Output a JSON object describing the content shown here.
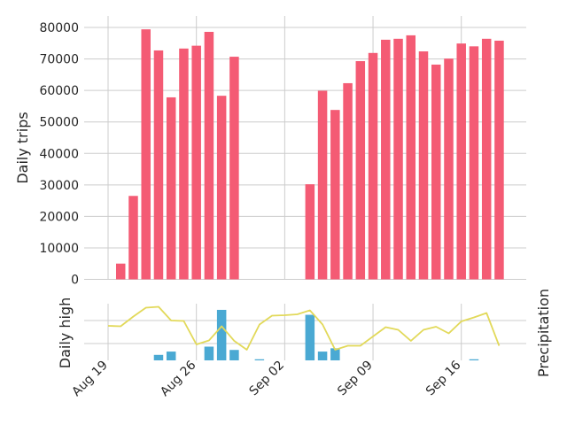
{
  "chart_data": [
    {
      "type": "bar",
      "panel": "top",
      "ylabel": "Daily trips",
      "ylim": [
        0,
        84000
      ],
      "yticks": [
        0,
        10000,
        20000,
        30000,
        40000,
        50000,
        60000,
        70000,
        80000
      ],
      "grid": true,
      "series": [
        {
          "color": "#f45b74",
          "points": [
            [
              "2016-08-20",
              5000
            ],
            [
              "2016-08-21",
              26500
            ],
            [
              "2016-08-22",
              79400
            ],
            [
              "2016-08-23",
              72700
            ],
            [
              "2016-08-24",
              57800
            ],
            [
              "2016-08-25",
              73300
            ],
            [
              "2016-08-26",
              74200
            ],
            [
              "2016-08-27",
              78600
            ],
            [
              "2016-08-28",
              58300
            ],
            [
              "2016-08-29",
              70700
            ],
            [
              "2016-09-04",
              30200
            ],
            [
              "2016-09-05",
              59900
            ],
            [
              "2016-09-06",
              53800
            ],
            [
              "2016-09-07",
              62300
            ],
            [
              "2016-09-08",
              69300
            ],
            [
              "2016-09-09",
              71900
            ],
            [
              "2016-09-10",
              76100
            ],
            [
              "2016-09-11",
              76400
            ],
            [
              "2016-09-12",
              77500
            ],
            [
              "2016-09-13",
              72400
            ],
            [
              "2016-09-14",
              68200
            ],
            [
              "2016-09-15",
              70100
            ],
            [
              "2016-09-16",
              74900
            ],
            [
              "2016-09-17",
              74000
            ],
            [
              "2016-09-18",
              76400
            ],
            [
              "2016-09-19",
              75800
            ]
          ]
        }
      ]
    },
    {
      "type": "line",
      "panel": "bottom",
      "ylabel_left": "Daily high",
      "ylabel_right": "Precipitation",
      "left_color": "#e2d95a",
      "right_color": "#4aa9d3",
      "grid": true,
      "x_tick_labels": [
        {
          "date": "2016-08-19",
          "label": "Aug 19"
        },
        {
          "date": "2016-08-26",
          "label": "Aug 26"
        },
        {
          "date": "2016-09-02",
          "label": "Sep 02"
        },
        {
          "date": "2016-09-09",
          "label": "Sep 09"
        },
        {
          "date": "2016-09-16",
          "label": "Sep 16"
        }
      ],
      "temperature": [
        [
          "2016-08-19",
          0.54
        ],
        [
          "2016-08-20",
          0.53
        ],
        [
          "2016-08-21",
          0.75
        ],
        [
          "2016-08-22",
          0.95
        ],
        [
          "2016-08-23",
          0.97
        ],
        [
          "2016-08-24",
          0.66
        ],
        [
          "2016-08-25",
          0.65
        ],
        [
          "2016-08-26",
          0.12
        ],
        [
          "2016-08-27",
          0.21
        ],
        [
          "2016-08-28",
          0.53
        ],
        [
          "2016-08-29",
          0.2
        ],
        [
          "2016-08-30",
          0.0
        ],
        [
          "2016-08-31",
          0.57
        ],
        [
          "2016-09-01",
          0.77
        ],
        [
          "2016-09-02",
          0.78
        ],
        [
          "2016-09-03",
          0.8
        ],
        [
          "2016-09-04",
          0.89
        ],
        [
          "2016-09-05",
          0.57
        ],
        [
          "2016-09-06",
          0.0
        ],
        [
          "2016-09-07",
          0.09
        ],
        [
          "2016-09-08",
          0.09
        ],
        [
          "2016-09-09",
          0.3
        ],
        [
          "2016-09-10",
          0.51
        ],
        [
          "2016-09-11",
          0.45
        ],
        [
          "2016-09-12",
          0.2
        ],
        [
          "2016-09-13",
          0.45
        ],
        [
          "2016-09-14",
          0.52
        ],
        [
          "2016-09-15",
          0.37
        ],
        [
          "2016-09-16",
          0.64
        ],
        [
          "2016-09-17",
          0.73
        ],
        [
          "2016-09-18",
          0.83
        ],
        [
          "2016-09-19",
          0.09
        ]
      ],
      "precipitation": [
        [
          "2016-08-23",
          0.1
        ],
        [
          "2016-08-24",
          0.16
        ],
        [
          "2016-08-27",
          0.25
        ],
        [
          "2016-08-28",
          0.92
        ],
        [
          "2016-08-29",
          0.19
        ],
        [
          "2016-08-31",
          0.02
        ],
        [
          "2016-09-04",
          0.83
        ],
        [
          "2016-09-05",
          0.16
        ],
        [
          "2016-09-06",
          0.22
        ],
        [
          "2016-09-17",
          0.02
        ]
      ]
    }
  ]
}
